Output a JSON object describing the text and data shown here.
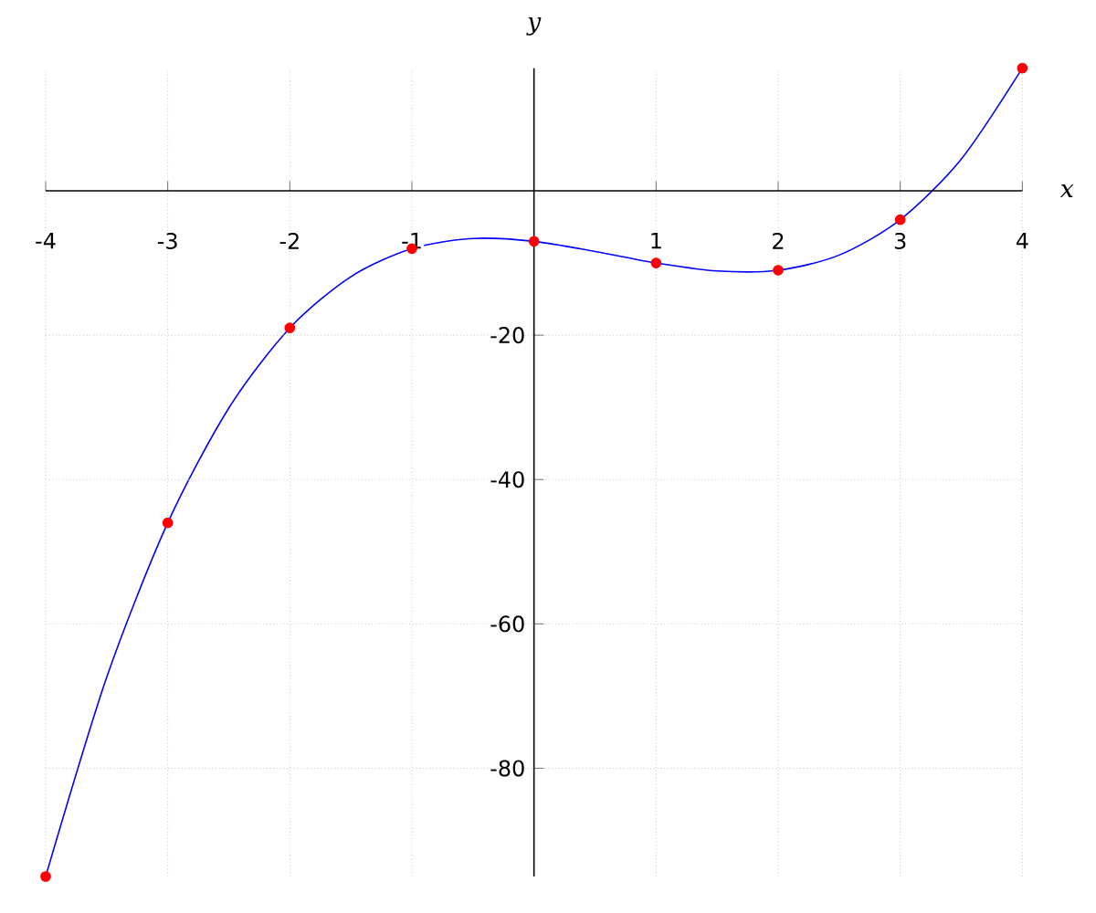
{
  "chart_data": {
    "type": "line",
    "xlabel": "x",
    "ylabel": "y",
    "xlim": [
      -4,
      4
    ],
    "ylim": [
      -95,
      17
    ],
    "xticks": [
      -4,
      -3,
      -2,
      -1,
      1,
      2,
      3,
      4
    ],
    "yticks": [
      -80,
      -60,
      -40,
      -20
    ],
    "grid": true,
    "series": [
      {
        "color": "#0000ff",
        "marker": "none",
        "x": [
          -4,
          -3.5,
          -3,
          -2.5,
          -2,
          -1.5,
          -1,
          -0.5,
          0,
          0.5,
          1,
          1.5,
          2,
          2.5,
          3,
          3.5,
          4
        ],
        "values": [
          -95,
          -67.4,
          -46,
          -30.1,
          -19,
          -11.9,
          -8,
          -6.6,
          -7,
          -8.4,
          -10,
          -11.1,
          -11,
          -8.9,
          -4,
          4.4,
          17
        ]
      },
      {
        "type": "scatter",
        "color": "#ff0000",
        "marker": "circle",
        "x": [
          -4,
          -3,
          -2,
          -1,
          0,
          1,
          2,
          3,
          4
        ],
        "values": [
          -95,
          -46,
          -19,
          -8,
          -7,
          -10,
          -11,
          -4,
          17
        ]
      }
    ]
  }
}
